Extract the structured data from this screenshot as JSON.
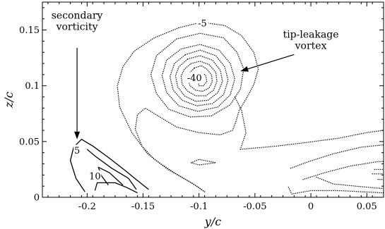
{
  "chart_data": {
    "type": "contour",
    "xlabel": "y/c",
    "ylabel": "z/c",
    "xlim": [
      -0.24,
      0.065
    ],
    "ylim": [
      0,
      0.175
    ],
    "x_ticks": [
      {
        "value": -0.2,
        "label": "-0.2"
      },
      {
        "value": -0.15,
        "label": "-0.15"
      },
      {
        "value": -0.1,
        "label": "-0.1"
      },
      {
        "value": -0.05,
        "label": "-0.05"
      },
      {
        "value": 0,
        "label": "0"
      },
      {
        "value": 0.05,
        "label": "0.05"
      }
    ],
    "y_ticks": [
      {
        "value": 0,
        "label": "0"
      },
      {
        "value": 0.05,
        "label": "0.05"
      },
      {
        "value": 0.1,
        "label": "0.1"
      },
      {
        "value": 0.15,
        "label": "0.15"
      }
    ],
    "grid": false,
    "annotations": [
      {
        "text_lines": [
          "secondary",
          "vorticity"
        ],
        "text_x": -0.209,
        "text_y": 0.16,
        "arrow_from": [
          -0.209,
          0.134
        ],
        "arrow_to": [
          -0.209,
          0.052
        ]
      },
      {
        "text_lines": [
          "tip-leakage",
          "vortex"
        ],
        "text_x": -0.0,
        "text_y": 0.143,
        "arrow_from": [
          -0.015,
          0.128
        ],
        "arrow_to": [
          -0.063,
          0.113
        ]
      }
    ],
    "contour_labels": [
      {
        "text": "-5",
        "x": -0.097,
        "y": 0.156
      },
      {
        "text": "-40",
        "x": -0.104,
        "y": 0.107
      },
      {
        "text": "5",
        "x": -0.209,
        "y": 0.042
      },
      {
        "text": "10",
        "x": -0.193,
        "y": 0.019
      }
    ],
    "contours": [
      {
        "level": -5,
        "style": "dotted",
        "points": [
          [
            -0.118,
            0.152
          ],
          [
            -0.098,
            0.157
          ],
          [
            -0.077,
            0.154
          ],
          [
            -0.062,
            0.145
          ],
          [
            -0.051,
            0.13
          ],
          [
            -0.047,
            0.115
          ],
          [
            -0.051,
            0.101
          ],
          [
            -0.058,
            0.088
          ],
          [
            -0.064,
            0.078
          ],
          [
            -0.067,
            0.068
          ],
          [
            -0.07,
            0.06
          ],
          [
            -0.081,
            0.056
          ],
          [
            -0.1,
            0.058
          ],
          [
            -0.12,
            0.063
          ],
          [
            -0.135,
            0.072
          ],
          [
            -0.148,
            0.08
          ],
          [
            -0.155,
            0.074
          ],
          [
            -0.157,
            0.061
          ],
          [
            -0.151,
            0.046
          ],
          [
            -0.14,
            0.034
          ],
          [
            -0.122,
            0.022
          ],
          [
            -0.102,
            0.01
          ],
          [
            -0.095,
            0.005
          ]
        ],
        "closed": false
      },
      {
        "level": -5,
        "style": "dotted",
        "points": [
          [
            -0.095,
            0.005
          ],
          [
            -0.105,
            0.012
          ],
          [
            -0.128,
            0.025
          ],
          [
            -0.146,
            0.039
          ],
          [
            -0.16,
            0.058
          ],
          [
            -0.171,
            0.081
          ],
          [
            -0.173,
            0.1
          ],
          [
            -0.168,
            0.117
          ],
          [
            -0.158,
            0.131
          ],
          [
            -0.14,
            0.143
          ],
          [
            -0.118,
            0.152
          ]
        ],
        "closed": false
      },
      {
        "level": -5,
        "style": "dotted",
        "points": [
          [
            -0.063,
            0.043
          ],
          [
            -0.052,
            0.044
          ],
          [
            -0.03,
            0.046
          ],
          [
            -0.005,
            0.049
          ],
          [
            0.025,
            0.053
          ],
          [
            0.05,
            0.058
          ],
          [
            0.065,
            0.06
          ]
        ],
        "closed": false
      },
      {
        "level": -5,
        "style": "dotted",
        "points": [
          [
            -0.063,
            0.043
          ],
          [
            -0.058,
            0.058
          ],
          [
            -0.062,
            0.078
          ],
          [
            -0.068,
            0.09
          ]
        ],
        "closed": false
      },
      {
        "level": -5,
        "style": "dotted",
        "points": [
          [
            -0.107,
            0.031
          ],
          [
            -0.1,
            0.034
          ],
          [
            -0.085,
            0.031
          ],
          [
            -0.1,
            0.029
          ],
          [
            -0.107,
            0.031
          ]
        ],
        "closed": true
      },
      {
        "level": -5,
        "style": "dotted",
        "points": [
          [
            -0.02,
            0.009
          ],
          [
            -0.017,
            0.003
          ],
          [
            0.0,
            0.006
          ],
          [
            0.025,
            0.006
          ],
          [
            0.045,
            0.005
          ],
          [
            0.065,
            0.004
          ]
        ],
        "closed": false
      },
      {
        "level": -10,
        "style": "dotted",
        "points": [
          [
            -0.018,
            0.026
          ],
          [
            -0.002,
            0.032
          ],
          [
            0.02,
            0.039
          ],
          [
            0.045,
            0.045
          ],
          [
            0.065,
            0.047
          ]
        ],
        "closed": false
      },
      {
        "level": -15,
        "style": "dotted",
        "points": [
          [
            -0.007,
            0.016
          ],
          [
            0.012,
            0.022
          ],
          [
            0.035,
            0.028
          ],
          [
            0.06,
            0.032
          ],
          [
            0.065,
            0.032
          ]
        ],
        "closed": false
      },
      {
        "level": -20,
        "style": "dotted",
        "points": [
          [
            0.055,
            0.021
          ],
          [
            0.065,
            0.021
          ]
        ],
        "closed": false
      },
      {
        "level": -20,
        "style": "dotted",
        "points": [
          [
            0.005,
            0.018
          ],
          [
            0.02,
            0.012
          ],
          [
            0.04,
            0.01
          ],
          [
            0.062,
            0.008
          ],
          [
            0.065,
            0.008
          ]
        ],
        "closed": false
      },
      {
        "level": -25,
        "style": "dotted",
        "points": [
          [
            0.057,
            0.025
          ],
          [
            0.065,
            0.025
          ]
        ],
        "closed": false
      },
      {
        "level": -30,
        "style": "dotted",
        "points": [
          [
            0.06,
            0.016
          ],
          [
            0.065,
            0.016
          ]
        ],
        "closed": false
      },
      {
        "level": -10,
        "style": "dotted",
        "points": [
          [
            -0.12,
            0.142
          ],
          [
            -0.099,
            0.147
          ],
          [
            -0.078,
            0.143
          ],
          [
            -0.066,
            0.13
          ],
          [
            -0.06,
            0.115
          ],
          [
            -0.063,
            0.097
          ],
          [
            -0.072,
            0.083
          ],
          [
            -0.089,
            0.073
          ],
          [
            -0.108,
            0.072
          ],
          [
            -0.127,
            0.079
          ],
          [
            -0.138,
            0.093
          ],
          [
            -0.143,
            0.11
          ],
          [
            -0.138,
            0.127
          ],
          [
            -0.12,
            0.142
          ]
        ],
        "closed": true
      },
      {
        "level": -15,
        "style": "dotted",
        "points": [
          [
            -0.116,
            0.133
          ],
          [
            -0.099,
            0.137
          ],
          [
            -0.082,
            0.132
          ],
          [
            -0.072,
            0.12
          ],
          [
            -0.068,
            0.106
          ],
          [
            -0.072,
            0.092
          ],
          [
            -0.083,
            0.081
          ],
          [
            -0.101,
            0.077
          ],
          [
            -0.118,
            0.082
          ],
          [
            -0.129,
            0.094
          ],
          [
            -0.133,
            0.109
          ],
          [
            -0.129,
            0.123
          ],
          [
            -0.116,
            0.133
          ]
        ],
        "closed": true
      },
      {
        "level": -20,
        "style": "dotted",
        "points": [
          [
            -0.112,
            0.128
          ],
          [
            -0.099,
            0.132
          ],
          [
            -0.085,
            0.127
          ],
          [
            -0.077,
            0.117
          ],
          [
            -0.074,
            0.105
          ],
          [
            -0.078,
            0.092
          ],
          [
            -0.088,
            0.084
          ],
          [
            -0.102,
            0.082
          ],
          [
            -0.115,
            0.087
          ],
          [
            -0.123,
            0.096
          ],
          [
            -0.126,
            0.108
          ],
          [
            -0.122,
            0.12
          ],
          [
            -0.112,
            0.128
          ]
        ],
        "closed": true
      },
      {
        "level": -25,
        "style": "dotted",
        "points": [
          [
            -0.11,
            0.124
          ],
          [
            -0.099,
            0.127
          ],
          [
            -0.088,
            0.123
          ],
          [
            -0.081,
            0.114
          ],
          [
            -0.079,
            0.104
          ],
          [
            -0.083,
            0.094
          ],
          [
            -0.092,
            0.087
          ],
          [
            -0.103,
            0.086
          ],
          [
            -0.113,
            0.091
          ],
          [
            -0.119,
            0.099
          ],
          [
            -0.121,
            0.109
          ],
          [
            -0.118,
            0.117
          ],
          [
            -0.11,
            0.124
          ]
        ],
        "closed": true
      },
      {
        "level": -30,
        "style": "dotted",
        "points": [
          [
            -0.107,
            0.12
          ],
          [
            -0.099,
            0.122
          ],
          [
            -0.091,
            0.119
          ],
          [
            -0.085,
            0.112
          ],
          [
            -0.084,
            0.104
          ],
          [
            -0.087,
            0.096
          ],
          [
            -0.094,
            0.091
          ],
          [
            -0.103,
            0.091
          ],
          [
            -0.11,
            0.095
          ],
          [
            -0.115,
            0.101
          ],
          [
            -0.116,
            0.109
          ],
          [
            -0.113,
            0.115
          ],
          [
            -0.107,
            0.12
          ]
        ],
        "closed": true
      },
      {
        "level": -35,
        "style": "dotted",
        "points": [
          [
            -0.104,
            0.116
          ],
          [
            -0.098,
            0.118
          ],
          [
            -0.093,
            0.115
          ],
          [
            -0.089,
            0.11
          ],
          [
            -0.088,
            0.104
          ],
          [
            -0.091,
            0.098
          ],
          [
            -0.097,
            0.095
          ],
          [
            -0.103,
            0.096
          ],
          [
            -0.108,
            0.1
          ],
          [
            -0.11,
            0.106
          ],
          [
            -0.108,
            0.112
          ],
          [
            -0.104,
            0.116
          ]
        ],
        "closed": true
      },
      {
        "level": -40,
        "style": "dotted",
        "points": [
          [
            -0.101,
            0.111
          ],
          [
            -0.097,
            0.112
          ],
          [
            -0.094,
            0.109
          ],
          [
            -0.093,
            0.104
          ],
          [
            -0.096,
            0.1
          ],
          [
            -0.1,
            0.1
          ],
          [
            -0.101,
            0.105
          ],
          [
            -0.101,
            0.111
          ]
        ],
        "closed": true
      },
      {
        "level": 5,
        "style": "solid",
        "points": [
          [
            -0.202,
            0.005
          ],
          [
            -0.21,
            0.017
          ],
          [
            -0.215,
            0.033
          ],
          [
            -0.212,
            0.045
          ],
          [
            -0.205,
            0.052
          ],
          [
            -0.195,
            0.046
          ],
          [
            -0.18,
            0.035
          ],
          [
            -0.166,
            0.024
          ],
          [
            -0.155,
            0.015
          ],
          [
            -0.145,
            0.007
          ]
        ],
        "closed": false
      },
      {
        "level": 5,
        "style": "solid",
        "points": [
          [
            -0.2,
            0.043
          ],
          [
            -0.193,
            0.037
          ],
          [
            -0.178,
            0.026
          ],
          [
            -0.163,
            0.017
          ],
          [
            -0.156,
            0.007
          ]
        ],
        "closed": false
      },
      {
        "level": 10,
        "style": "solid",
        "points": [
          [
            -0.181,
            0.011
          ],
          [
            -0.187,
            0.019
          ],
          [
            -0.19,
            0.027
          ],
          [
            -0.18,
            0.022
          ],
          [
            -0.168,
            0.011
          ]
        ],
        "closed": false
      },
      {
        "level": 10,
        "style": "solid",
        "points": [
          [
            -0.193,
            0.006
          ],
          [
            -0.191,
            0.013
          ],
          [
            -0.175,
            0.013
          ],
          [
            -0.165,
            0.009
          ],
          [
            -0.155,
            0.004
          ]
        ],
        "closed": false
      }
    ]
  }
}
